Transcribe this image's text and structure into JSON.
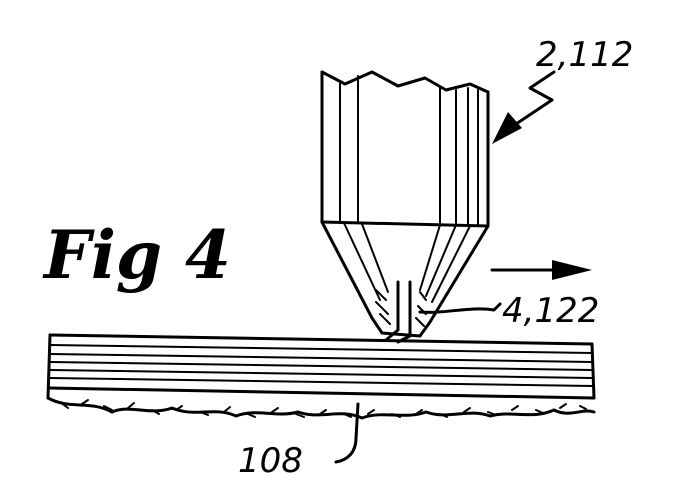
{
  "figure": {
    "title": "Fig 4",
    "labels": {
      "tool": "2,112",
      "tip": "4,122",
      "substrate": "108"
    }
  },
  "colors": {
    "ink": "#000000",
    "paper": "#ffffff"
  },
  "icons": {
    "motion_direction": "arrow-right-icon"
  }
}
